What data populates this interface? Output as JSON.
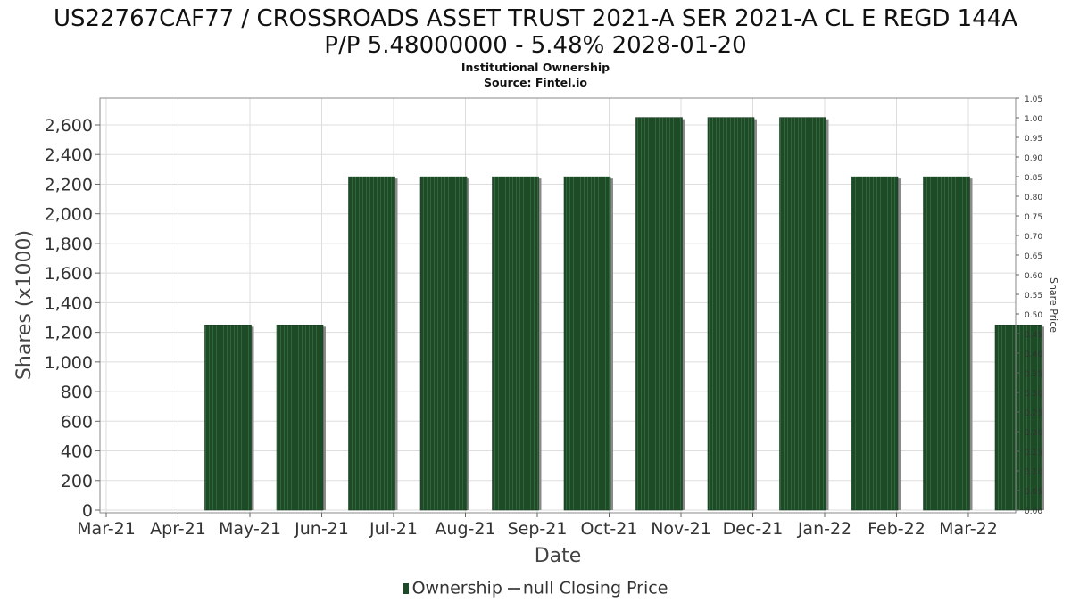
{
  "header": {
    "title_line1": "US22767CAF77 / CROSSROADS ASSET TRUST 2021-A SER 2021-A CL E REGD 144A",
    "title_line2": "P/P 5.48000000 - 5.48% 2028-01-20",
    "subtitle1": "Institutional Ownership",
    "subtitle2": "Source: Fintel.io"
  },
  "legend": {
    "ownership_label": "Ownership",
    "price_label": "null Closing Price"
  },
  "colors": {
    "bar": "#1e4a28",
    "bar_stripe": "#2d6a38",
    "bar_shadow": "#8a8a8a",
    "grid": "#dddddd"
  },
  "chart_data": {
    "type": "bar",
    "categories": [
      "Mar-21",
      "Apr-21",
      "May-21",
      "Jun-21",
      "Jul-21",
      "Aug-21",
      "Sep-21",
      "Oct-21",
      "Nov-21",
      "Dec-21",
      "Jan-22",
      "Feb-22",
      "Mar-22"
    ],
    "series": [
      {
        "name": "Ownership",
        "values": [
          null,
          1250,
          1250,
          2250,
          2250,
          2250,
          2250,
          2650,
          2650,
          2650,
          2250,
          2250,
          1250
        ]
      }
    ],
    "xlabel": "Date",
    "ylabel": "Shares (x1000)",
    "y2label": "Share Price",
    "ylim": [
      0,
      2800
    ],
    "yticks": [
      0,
      200,
      400,
      600,
      800,
      1000,
      1200,
      1400,
      1600,
      1800,
      2000,
      2200,
      2400,
      2600
    ],
    "ytick_labels": [
      "0",
      "200",
      "400",
      "600",
      "800",
      "1,000",
      "1,200",
      "1,400",
      "1,600",
      "1,800",
      "2,000",
      "2,200",
      "2,400",
      "2,600"
    ],
    "y2lim": [
      0,
      1.05
    ],
    "y2ticks": [
      0,
      0.05,
      0.1,
      0.15,
      0.2,
      0.25,
      0.3,
      0.35,
      0.4,
      0.45,
      0.5,
      0.55,
      0.6,
      0.65,
      0.7,
      0.75,
      0.8,
      0.85,
      0.9,
      0.95,
      1.0,
      1.05
    ],
    "y2tick_labels": [
      "0.00",
      "0.05",
      "0.10",
      "0.15",
      "0.20",
      "0.25",
      "0.30",
      "0.35",
      "0.40",
      "0.45",
      "0.50",
      "0.55",
      "0.60",
      "0.65",
      "0.70",
      "0.75",
      "0.80",
      "0.85",
      "0.90",
      "0.95",
      "1.00",
      "1.05"
    ],
    "grid": true,
    "legend_position": "bottom"
  }
}
